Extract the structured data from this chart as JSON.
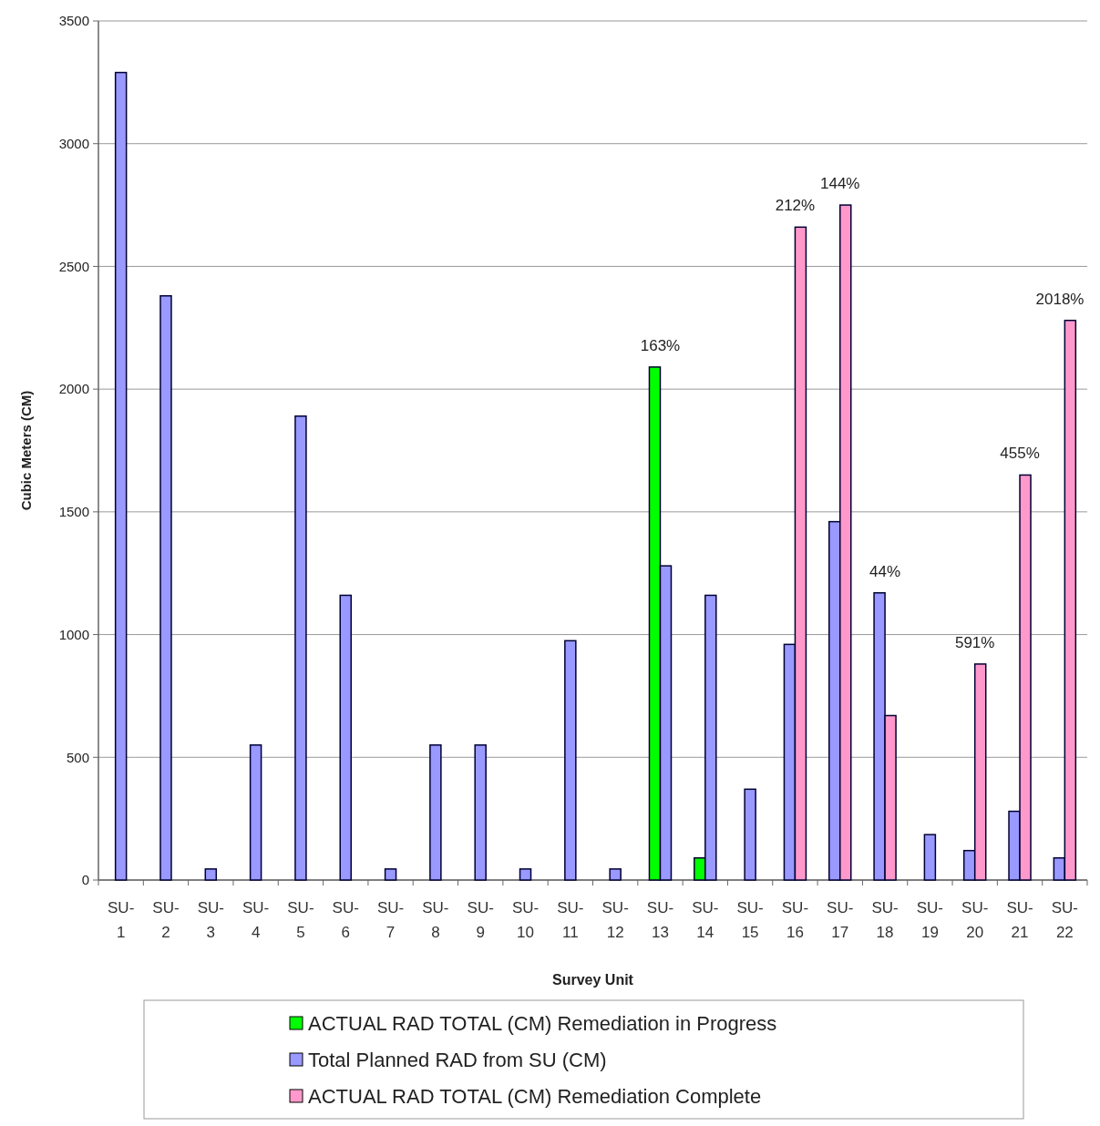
{
  "chart_data": {
    "type": "bar",
    "xlabel": "Survey Unit",
    "ylabel": "Cubic Meters (CM)",
    "categories": [
      "SU-1",
      "SU-2",
      "SU-3",
      "SU-4",
      "SU-5",
      "SU-6",
      "SU-7",
      "SU-8",
      "SU-9",
      "SU-10",
      "SU-11",
      "SU-12",
      "SU-13",
      "SU-14",
      "SU-15",
      "SU-16",
      "SU-17",
      "SU-18",
      "SU-19",
      "SU-20",
      "SU-21",
      "SU-22"
    ],
    "series": [
      {
        "name": "ACTUAL RAD TOTAL (CM) Remediation in Progress",
        "color": "#00ff00",
        "values": [
          null,
          null,
          null,
          null,
          null,
          null,
          null,
          null,
          null,
          null,
          null,
          null,
          2090,
          90,
          null,
          null,
          null,
          null,
          null,
          null,
          null,
          null
        ]
      },
      {
        "name": "Total Planned RAD from SU  (CM)",
        "color": "#9999ff",
        "values": [
          3290,
          2380,
          45,
          550,
          1890,
          1160,
          45,
          550,
          550,
          45,
          975,
          45,
          1280,
          1160,
          370,
          960,
          1460,
          1170,
          185,
          120,
          280,
          90
        ]
      },
      {
        "name": "ACTUAL RAD TOTAL (CM) Remediation Complete",
        "color": "#ff99cc",
        "values": [
          null,
          null,
          null,
          null,
          null,
          null,
          null,
          null,
          null,
          null,
          null,
          null,
          null,
          null,
          null,
          2660,
          2750,
          670,
          null,
          880,
          1650,
          2280
        ]
      }
    ],
    "ylim": [
      0,
      3500
    ],
    "yticks": [
      0,
      500,
      1000,
      1500,
      2000,
      2500,
      3000,
      3500
    ],
    "grid": "y",
    "legend": "bottom",
    "annotations": [
      {
        "text": "163%",
        "x": "SU-13",
        "y": 2090
      },
      {
        "text": "212%",
        "x": "SU-16",
        "y": 2660
      },
      {
        "text": "144%",
        "x": "SU-17",
        "y": 2750
      },
      {
        "text": "44%",
        "x": "SU-18",
        "y": 1170
      },
      {
        "text": "591%",
        "x": "SU-20",
        "y": 880
      },
      {
        "text": "455%",
        "x": "SU-21",
        "y": 1650
      },
      {
        "text": "2018%",
        "x": "SU-22",
        "y": 2280
      }
    ]
  }
}
